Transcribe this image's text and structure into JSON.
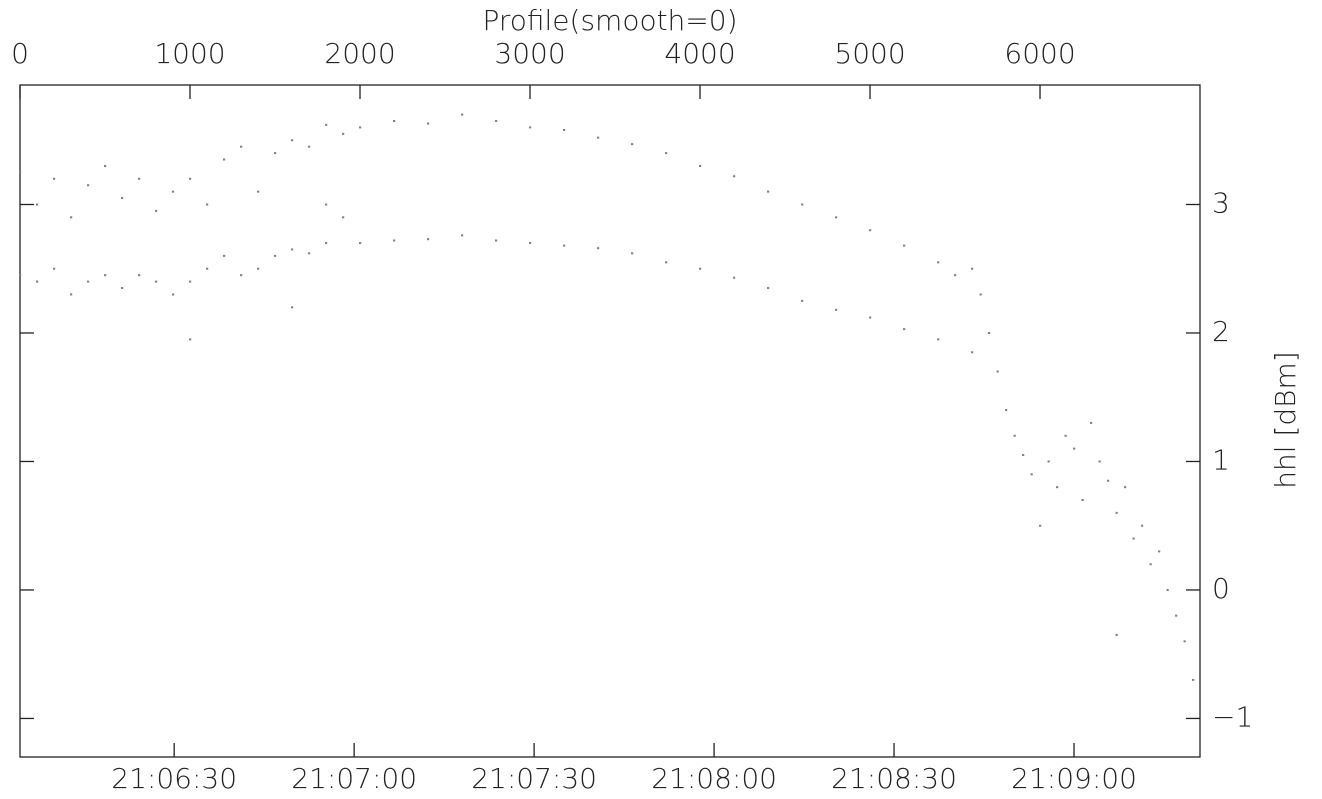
{
  "chart_data": {
    "type": "scatter",
    "title": "Profile(smooth=0)",
    "y_label": "hhl [dBm]",
    "color": "#7f7f7f",
    "x": [
      0,
      100,
      200,
      300,
      400,
      500,
      600,
      700,
      800,
      900,
      1000,
      1100,
      1200,
      1300,
      1400,
      1500,
      1600,
      1700,
      1800,
      1900,
      2000,
      2200,
      2400,
      2600,
      2800,
      3000,
      3200,
      3400,
      3600,
      3800,
      4000,
      4200,
      4400,
      4600,
      4800,
      5000,
      5200,
      5400,
      5500,
      5600,
      0,
      100,
      200,
      300,
      400,
      500,
      600,
      700,
      800,
      900,
      1000,
      1100,
      1200,
      1300,
      1400,
      1500,
      1600,
      1700,
      1800,
      2000,
      2200,
      2400,
      2600,
      2800,
      3000,
      3200,
      3400,
      3600,
      3800,
      4000,
      4200,
      4400,
      4600,
      4800,
      5000,
      5200,
      5400,
      5600,
      1000,
      1600,
      1800,
      1900,
      5650,
      5700,
      5750,
      5800,
      5850,
      5900,
      5950,
      6000,
      6050,
      6100,
      6150,
      6200,
      6250,
      6300,
      6350,
      6400,
      6450,
      6500,
      6550,
      6600,
      6650,
      6700,
      6750,
      6800,
      6850,
      6900,
      6450
    ],
    "values": [
      3.25,
      3.0,
      3.2,
      2.9,
      3.15,
      3.3,
      3.05,
      3.2,
      2.95,
      3.1,
      3.2,
      3.0,
      3.35,
      3.45,
      3.1,
      3.4,
      3.5,
      3.45,
      3.62,
      3.55,
      3.6,
      3.65,
      3.63,
      3.7,
      3.65,
      3.6,
      3.58,
      3.52,
      3.47,
      3.4,
      3.3,
      3.22,
      3.1,
      3.0,
      2.9,
      2.8,
      2.68,
      2.55,
      2.45,
      2.5,
      2.45,
      2.4,
      2.5,
      2.3,
      2.4,
      2.45,
      2.35,
      2.45,
      2.4,
      2.3,
      2.4,
      2.5,
      2.6,
      2.45,
      2.5,
      2.6,
      2.65,
      2.62,
      2.7,
      2.7,
      2.72,
      2.73,
      2.76,
      2.72,
      2.7,
      2.68,
      2.66,
      2.62,
      2.55,
      2.5,
      2.43,
      2.35,
      2.25,
      2.18,
      2.12,
      2.03,
      1.95,
      1.85,
      1.95,
      2.2,
      3.0,
      2.9,
      2.3,
      2.0,
      1.7,
      1.4,
      1.2,
      1.05,
      0.9,
      0.5,
      1.0,
      0.8,
      1.2,
      1.1,
      0.7,
      1.3,
      1.0,
      0.85,
      0.6,
      0.8,
      0.4,
      0.5,
      0.2,
      0.3,
      0.0,
      -0.2,
      -0.4,
      -0.7,
      -0.35
    ],
    "xlim": [
      0,
      6941
    ],
    "xticks": [
      0,
      1000,
      2000,
      3000,
      4000,
      5000,
      6000
    ],
    "x2lim": [
      75964.3,
      76161
    ],
    "x2ticks": [
      {
        "value": 75990,
        "label": "21:06:30"
      },
      {
        "value": 76020,
        "label": "21:07:00"
      },
      {
        "value": 76050,
        "label": "21:07:30"
      },
      {
        "value": 76080,
        "label": "21:08:00"
      },
      {
        "value": 76110,
        "label": "21:08:30"
      },
      {
        "value": 76140,
        "label": "21:09:00"
      }
    ],
    "ylim": [
      -1.3,
      3.93
    ],
    "yticks": [
      {
        "value": -1,
        "label": "−1"
      },
      0,
      1,
      2,
      3
    ]
  }
}
